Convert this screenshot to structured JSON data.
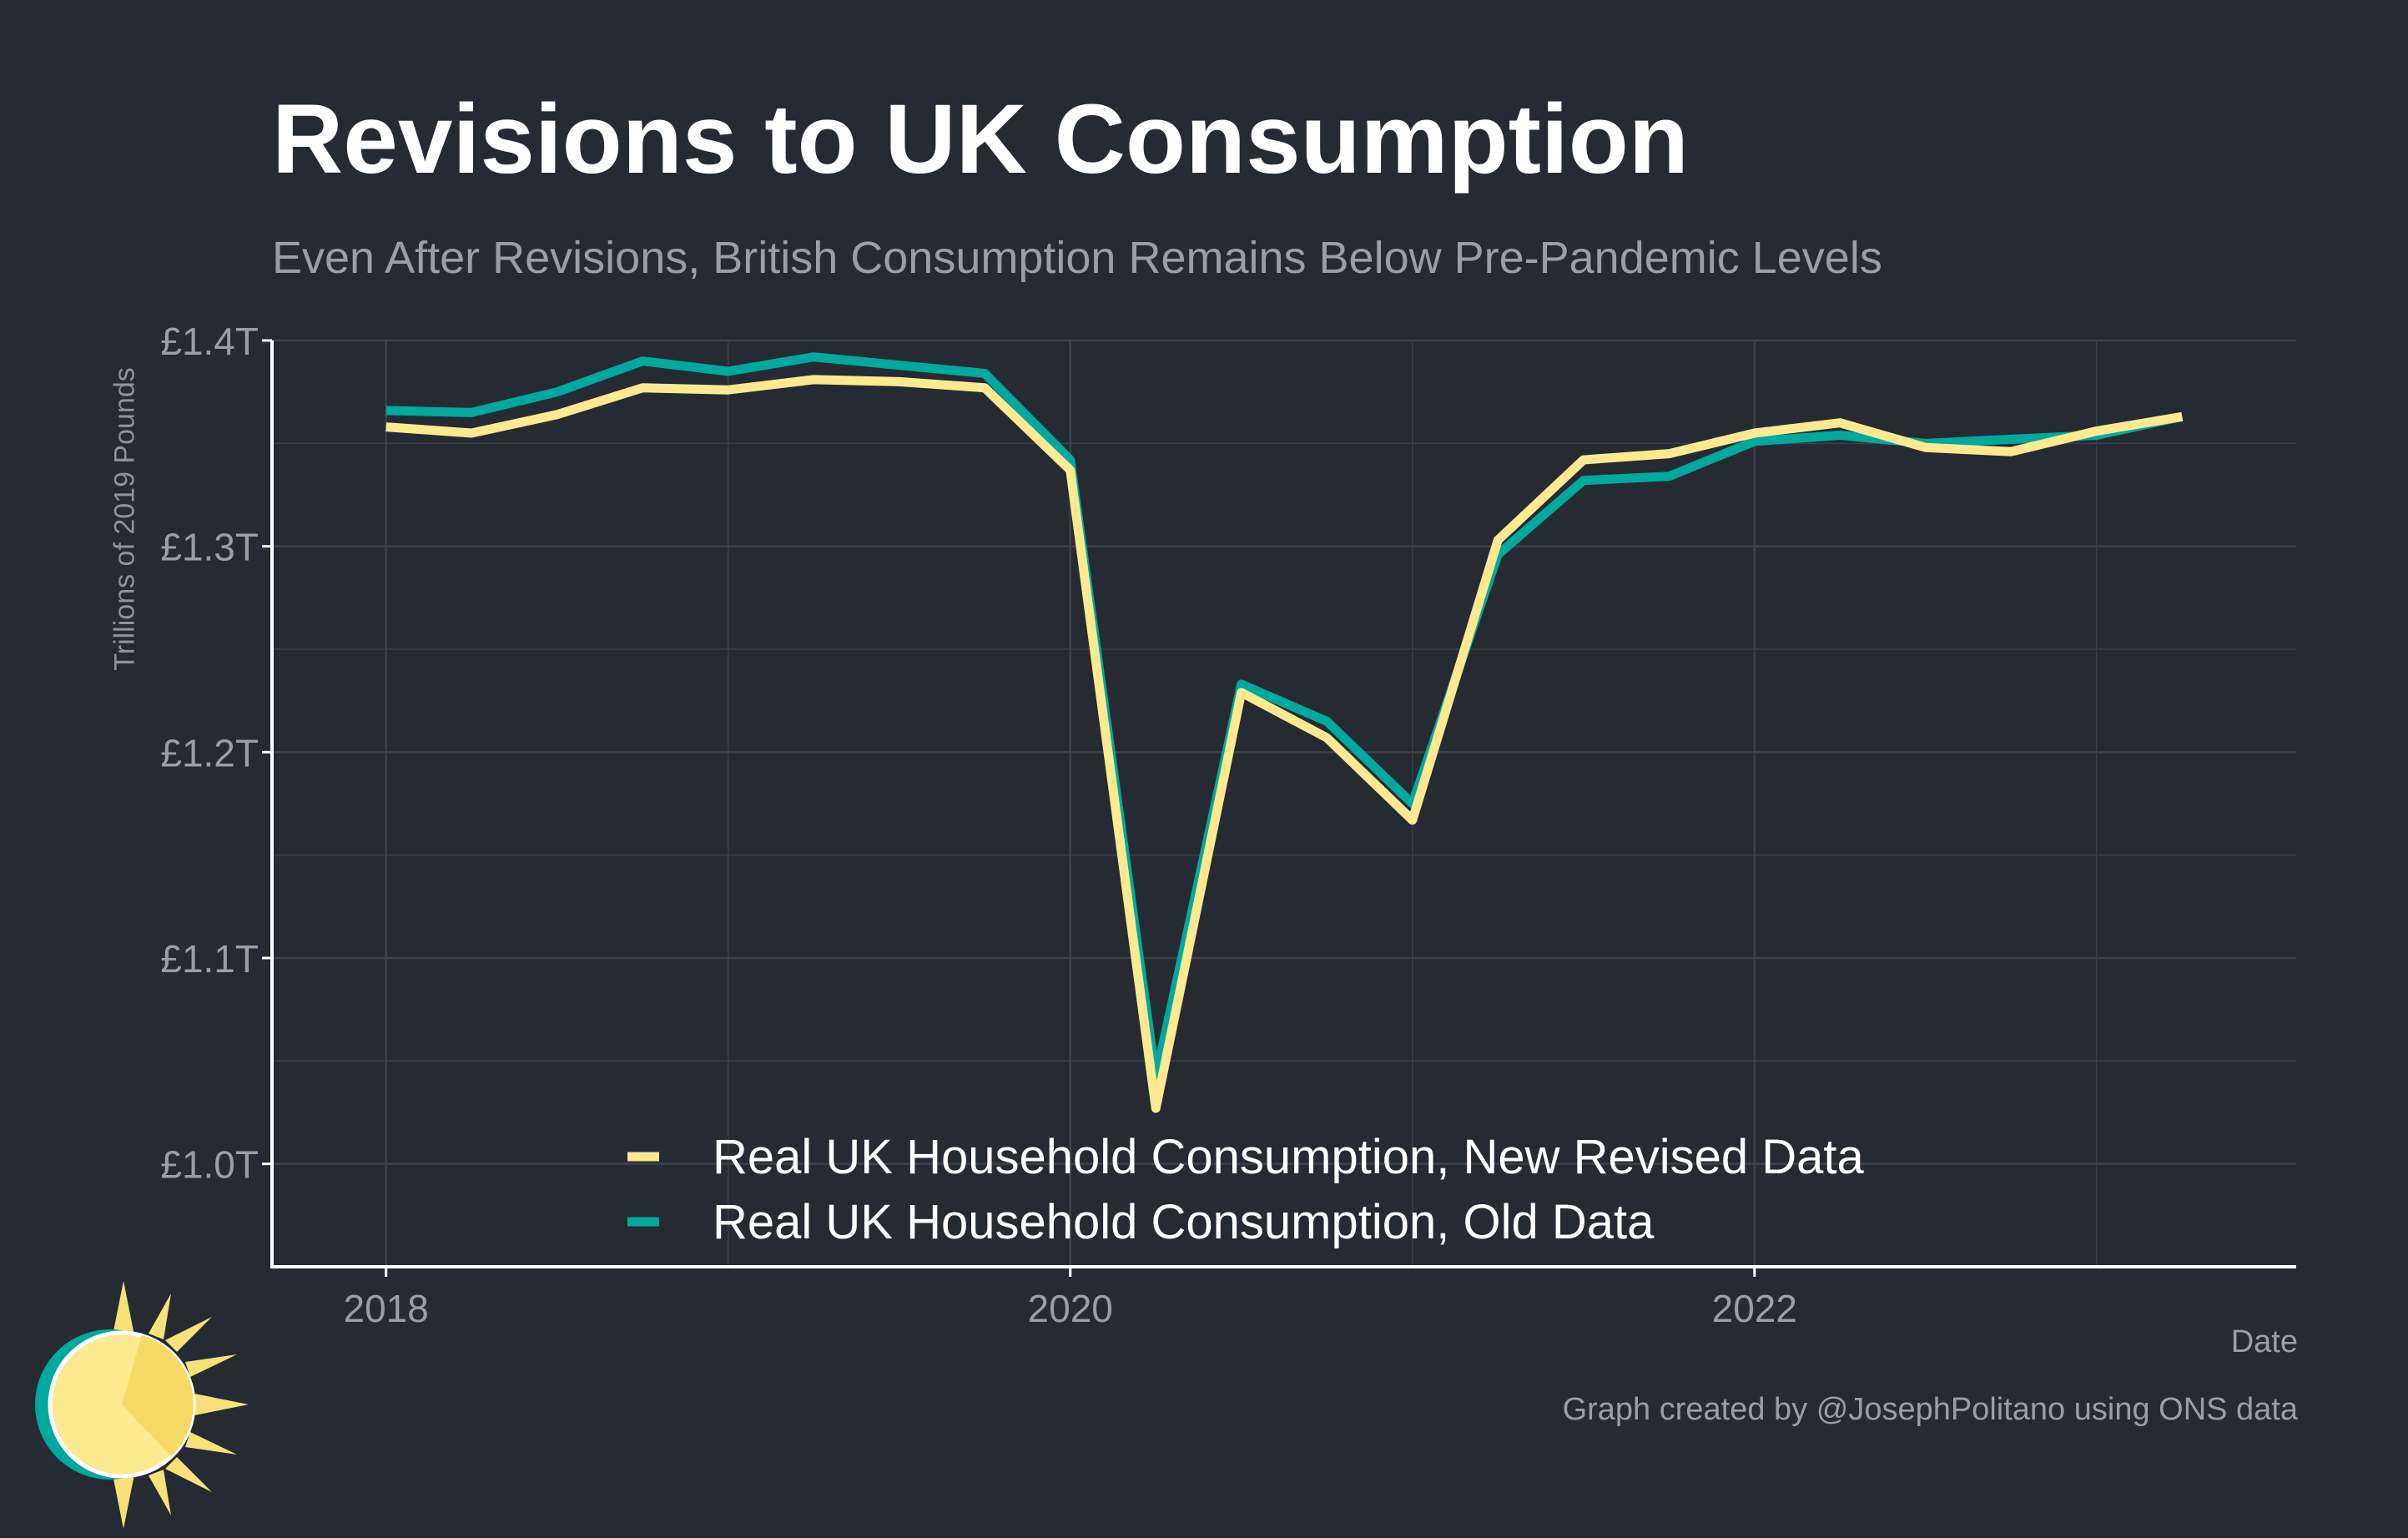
{
  "colors": {
    "background": "#252a33",
    "grid": "#3c414b",
    "axis": "#ffffff",
    "new_series": "#fde98f",
    "old_series": "#00a99d"
  },
  "chart_data": {
    "type": "line",
    "title": "Revisions to UK Consumption",
    "subtitle": "Even After Revisions, British Consumption Remains Below Pre-Pandemic Levels",
    "xlabel": "Date",
    "ylabel": "Trillions of 2019 Pounds",
    "caption": "Graph created by @JosephPolitano using ONS data",
    "ylim": [
      0.95,
      1.4
    ],
    "xlim": [
      "2017-09",
      "2023-08"
    ],
    "yticks": [
      1.0,
      1.1,
      1.2,
      1.3,
      1.4
    ],
    "ytick_labels": [
      "£1.0T",
      "£1.1T",
      "£1.2T",
      "£1.3T",
      "£1.4T"
    ],
    "xticks": [
      "2018-01",
      "2020-01",
      "2022-01"
    ],
    "xtick_labels": [
      "2018",
      "2020",
      "2022"
    ],
    "grid": true,
    "legend_position": "bottom-center",
    "x": [
      "2018-01",
      "2018-04",
      "2018-07",
      "2018-10",
      "2019-01",
      "2019-04",
      "2019-07",
      "2019-10",
      "2020-01",
      "2020-04",
      "2020-07",
      "2020-10",
      "2021-01",
      "2021-04",
      "2021-07",
      "2021-10",
      "2022-01",
      "2022-04",
      "2022-07",
      "2022-10",
      "2023-01",
      "2023-04"
    ],
    "series": [
      {
        "name": "Real UK Household Consumption, New Revised Data",
        "color": "#fde98f",
        "values": [
          1.358,
          1.355,
          1.364,
          1.377,
          1.376,
          1.381,
          1.38,
          1.377,
          1.337,
          1.027,
          1.229,
          1.207,
          1.167,
          1.303,
          1.342,
          1.345,
          1.355,
          1.36,
          1.348,
          1.346,
          1.356,
          1.363
        ]
      },
      {
        "name": "Real UK Household Consumption, Old Data",
        "color": "#00a99d",
        "values": [
          1.366,
          1.365,
          1.375,
          1.39,
          1.385,
          1.392,
          1.388,
          1.384,
          1.342,
          1.042,
          1.233,
          1.215,
          1.175,
          1.296,
          1.332,
          1.334,
          1.351,
          1.354,
          1.35,
          1.352,
          1.354,
          1.363
        ]
      }
    ]
  }
}
